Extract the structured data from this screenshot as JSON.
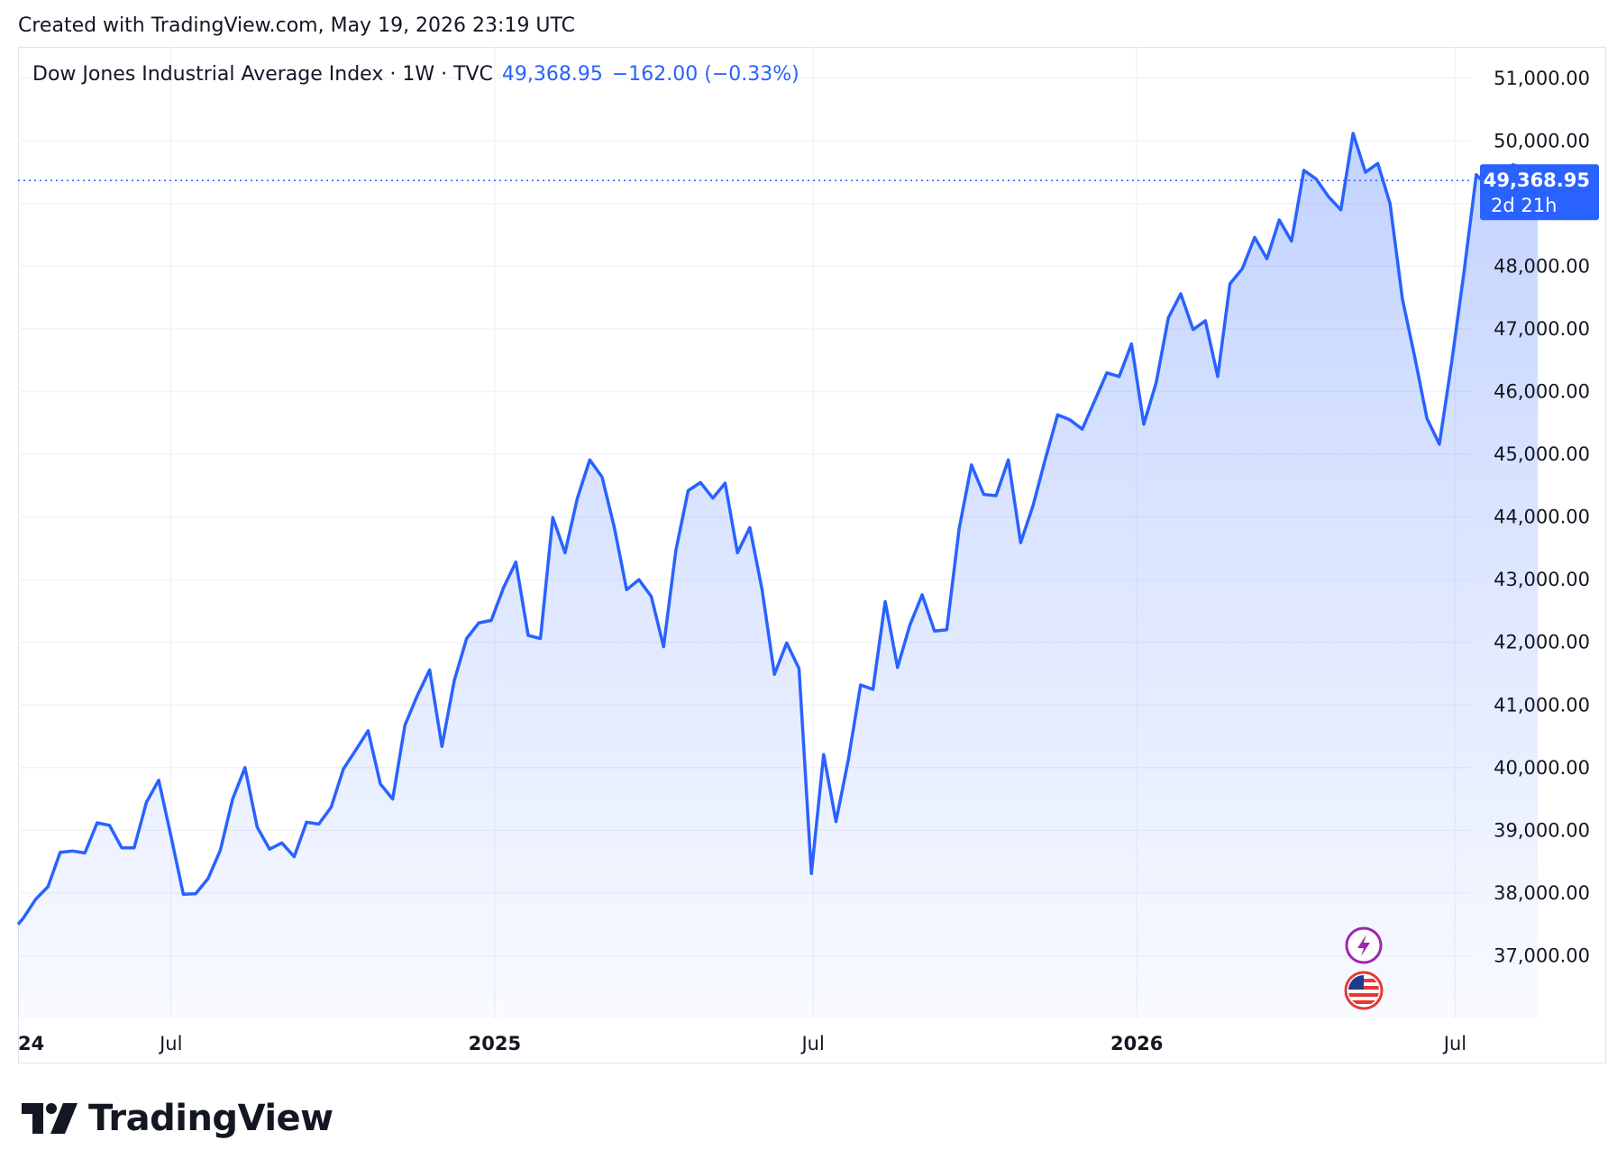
{
  "header": {
    "created_text": "Created with TradingView.com, May 19, 2026 23:19 UTC"
  },
  "legend": {
    "title": "Dow Jones Industrial Average Index · 1W · TVC",
    "last_value": "49,368.95",
    "change": "−162.00 (−0.33%)"
  },
  "price_label": {
    "value": "49,368.95",
    "countdown": "2d 21h"
  },
  "brand": {
    "name": "TradingView"
  },
  "colors": {
    "line": "#2962ff",
    "label_bg": "#2962ff",
    "grid": "#f0f3fa",
    "text": "#131722"
  },
  "icons": [
    "lightning-icon",
    "us-flag-icon"
  ],
  "chart_data": {
    "type": "area",
    "title": "Dow Jones Industrial Average Index",
    "interval": "1W",
    "ylim": [
      36000,
      51500
    ],
    "xlim": [
      "2024-04-05",
      "2026-07-10"
    ],
    "y_ticks": [
      {
        "value": 37000,
        "label": "37,000.00"
      },
      {
        "value": 38000,
        "label": "38,000.00"
      },
      {
        "value": 39000,
        "label": "39,000.00"
      },
      {
        "value": 40000,
        "label": "40,000.00"
      },
      {
        "value": 41000,
        "label": "41,000.00"
      },
      {
        "value": 42000,
        "label": "42,000.00"
      },
      {
        "value": 43000,
        "label": "43,000.00"
      },
      {
        "value": 44000,
        "label": "44,000.00"
      },
      {
        "value": 45000,
        "label": "45,000.00"
      },
      {
        "value": 46000,
        "label": "46,000.00"
      },
      {
        "value": 47000,
        "label": "47,000.00"
      },
      {
        "value": 48000,
        "label": "48,000.00"
      },
      {
        "value": 49000,
        "label": ""
      },
      {
        "value": 50000,
        "label": "50,000.00"
      },
      {
        "value": 51000,
        "label": "51,000.00"
      }
    ],
    "x_ticks": [
      {
        "date": "2024-04-05",
        "label": "24",
        "bold": true
      },
      {
        "date": "2024-07-01",
        "label": "Jul",
        "bold": false
      },
      {
        "date": "2025-01-01",
        "label": "2025",
        "bold": true
      },
      {
        "date": "2025-07-01",
        "label": "Jul",
        "bold": false
      },
      {
        "date": "2026-01-01",
        "label": "2026",
        "bold": true
      },
      {
        "date": "2026-07-01",
        "label": "Jul",
        "bold": false
      }
    ],
    "last_value": 49368.95,
    "series": [
      {
        "values": [
          [
            "2024-04-05",
            37500
          ],
          [
            "2024-04-08",
            37600
          ],
          [
            "2024-04-15",
            37900
          ],
          [
            "2024-04-22",
            38100
          ],
          [
            "2024-04-29",
            38650
          ],
          [
            "2024-05-06",
            38670
          ],
          [
            "2024-05-13",
            38640
          ],
          [
            "2024-05-20",
            39120
          ],
          [
            "2024-05-27",
            39080
          ],
          [
            "2024-06-03",
            38720
          ],
          [
            "2024-06-10",
            38720
          ],
          [
            "2024-06-17",
            39450
          ],
          [
            "2024-06-24",
            39800
          ],
          [
            "2024-07-01",
            38900
          ],
          [
            "2024-07-08",
            37980
          ],
          [
            "2024-07-15",
            37990
          ],
          [
            "2024-07-22",
            38230
          ],
          [
            "2024-07-29",
            38680
          ],
          [
            "2024-08-05",
            39500
          ],
          [
            "2024-08-12",
            40000
          ],
          [
            "2024-08-19",
            39050
          ],
          [
            "2024-08-26",
            38700
          ],
          [
            "2024-09-02",
            38800
          ],
          [
            "2024-09-09",
            38580
          ],
          [
            "2024-09-16",
            39130
          ],
          [
            "2024-09-23",
            39100
          ],
          [
            "2024-09-30",
            39370
          ],
          [
            "2024-10-07",
            39980
          ],
          [
            "2024-10-14",
            40280
          ],
          [
            "2024-10-21",
            40590
          ],
          [
            "2024-10-28",
            39740
          ],
          [
            "2024-11-04",
            39500
          ],
          [
            "2024-11-11",
            40680
          ],
          [
            "2024-11-18",
            41150
          ],
          [
            "2024-11-25",
            41560
          ],
          [
            "2024-12-02",
            40340
          ],
          [
            "2024-12-09",
            41390
          ],
          [
            "2024-12-16",
            42060
          ],
          [
            "2024-12-23",
            42310
          ],
          [
            "2024-12-30",
            42350
          ],
          [
            "2025-01-06",
            42870
          ],
          [
            "2025-01-13",
            43280
          ],
          [
            "2025-01-20",
            42110
          ],
          [
            "2025-01-27",
            42060
          ],
          [
            "2025-02-03",
            43990
          ],
          [
            "2025-02-10",
            43430
          ],
          [
            "2025-02-17",
            44300
          ],
          [
            "2025-02-24",
            44910
          ],
          [
            "2025-03-03",
            44640
          ],
          [
            "2025-03-10",
            43830
          ],
          [
            "2025-03-17",
            42840
          ],
          [
            "2025-03-24",
            43000
          ],
          [
            "2025-03-31",
            42730
          ],
          [
            "2025-04-07",
            41930
          ],
          [
            "2025-04-14",
            43470
          ],
          [
            "2025-04-21",
            44420
          ],
          [
            "2025-04-28",
            44550
          ],
          [
            "2025-05-05",
            44300
          ],
          [
            "2025-05-12",
            44540
          ],
          [
            "2025-05-19",
            43430
          ],
          [
            "2025-05-26",
            43830
          ],
          [
            "2025-06-02",
            42840
          ],
          [
            "2025-06-09",
            41490
          ],
          [
            "2025-06-16",
            41990
          ],
          [
            "2025-06-23",
            41580
          ],
          [
            "2025-06-30",
            38310
          ],
          [
            "2025-07-07",
            40210
          ],
          [
            "2025-07-14",
            39140
          ],
          [
            "2025-07-21",
            40120
          ],
          [
            "2025-07-28",
            41320
          ],
          [
            "2025-08-04",
            41250
          ],
          [
            "2025-08-11",
            42650
          ],
          [
            "2025-08-18",
            41600
          ],
          [
            "2025-08-25",
            42270
          ],
          [
            "2025-09-01",
            42760
          ],
          [
            "2025-09-08",
            42180
          ],
          [
            "2025-09-15",
            42200
          ],
          [
            "2025-09-22",
            43810
          ],
          [
            "2025-09-29",
            44830
          ],
          [
            "2025-10-06",
            44360
          ],
          [
            "2025-10-13",
            44340
          ],
          [
            "2025-10-20",
            44910
          ],
          [
            "2025-10-27",
            43590
          ],
          [
            "2025-11-03",
            44180
          ],
          [
            "2025-11-10",
            44920
          ],
          [
            "2025-11-17",
            45630
          ],
          [
            "2025-11-24",
            45550
          ],
          [
            "2025-12-01",
            45400
          ],
          [
            "2025-12-08",
            45850
          ],
          [
            "2025-12-15",
            46300
          ],
          [
            "2025-12-22",
            46240
          ],
          [
            "2025-12-29",
            46760
          ],
          [
            "2026-01-05",
            45480
          ],
          [
            "2026-01-12",
            46140
          ],
          [
            "2026-01-19",
            47180
          ],
          [
            "2026-01-26",
            47560
          ],
          [
            "2026-02-02",
            46990
          ],
          [
            "2026-02-09",
            47130
          ],
          [
            "2026-02-16",
            46240
          ],
          [
            "2026-02-23",
            47720
          ],
          [
            "2026-03-02",
            47960
          ],
          [
            "2026-03-09",
            48460
          ],
          [
            "2026-03-16",
            48120
          ],
          [
            "2026-03-23",
            48740
          ],
          [
            "2026-03-30",
            48400
          ],
          [
            "2026-04-06",
            49530
          ],
          [
            "2026-04-13",
            49390
          ],
          [
            "2026-04-20",
            49110
          ],
          [
            "2026-04-27",
            48900
          ],
          [
            "2026-05-04",
            50120
          ],
          [
            "2026-05-11",
            49500
          ],
          [
            "2026-05-18",
            49640
          ],
          [
            "2026-05-25",
            49000
          ],
          [
            "2026-06-01",
            47480
          ],
          [
            "2026-06-08",
            46560
          ],
          [
            "2026-06-15",
            45570
          ],
          [
            "2026-06-22",
            45160
          ],
          [
            "2026-06-29",
            46460
          ],
          [
            "2026-07-06",
            47900
          ],
          [
            "2026-07-13",
            49460
          ],
          [
            "2026-07-20",
            49260
          ],
          [
            "2026-07-27",
            49510
          ],
          [
            "2026-08-03",
            49620
          ],
          [
            "2026-08-10",
            49540
          ],
          [
            "2026-08-17",
            49368.95
          ]
        ]
      }
    ]
  }
}
